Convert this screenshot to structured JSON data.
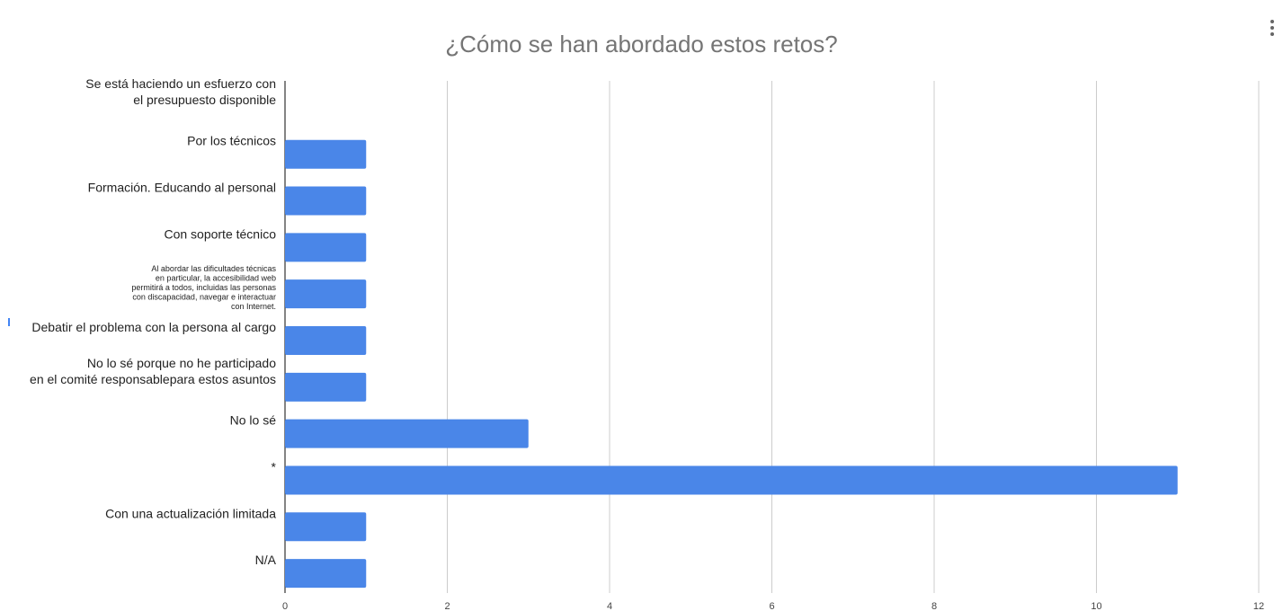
{
  "chart_data": {
    "type": "bar",
    "orientation": "horizontal",
    "title": "¿Cómo se han abordado estos retos?",
    "xlabel": "",
    "ylabel": "",
    "categories": [
      "Se está haciendo un esfuerzo con\nel presupuesto disponible",
      "Por los técnicos",
      "Formación. Educando al personal",
      "Con soporte técnico",
      "Al abordar las dificultades técnicas\nen particular, la accesibilidad web\npermitirá a todos, incluidas las personas\ncon discapacidad, navegar e interactuar\ncon Internet.",
      "Debatir el problema con la persona al cargo",
      "No lo sé porque no he participado\nen el comité responsablepara estos asuntos",
      "No lo sé",
      "*",
      "Con una actualización limitada",
      "N/A"
    ],
    "values": [
      0,
      1,
      1,
      1,
      1,
      1,
      1,
      3,
      11,
      1,
      1
    ],
    "xlim": [
      0,
      12
    ],
    "xticks": [
      0,
      2,
      4,
      6,
      8,
      10,
      12
    ],
    "grid": true,
    "legend": "none",
    "bar_color": "#4a86e8",
    "grid_color": "#cccccc"
  },
  "menu": {
    "icon": "more-vert-icon"
  }
}
